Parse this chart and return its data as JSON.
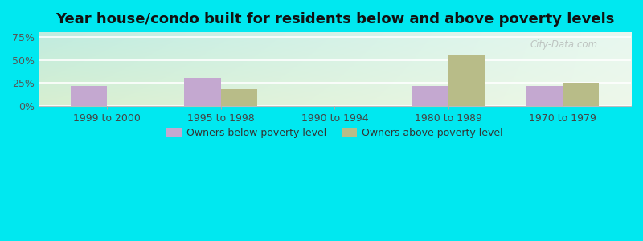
{
  "title": "Year house/condo built for residents below and above poverty levels",
  "categories": [
    "1999 to 2000",
    "1995 to 1998",
    "1990 to 1994",
    "1980 to 1989",
    "1970 to 1979"
  ],
  "below_poverty": [
    22,
    30,
    0,
    22,
    22
  ],
  "above_poverty": [
    0,
    18,
    0,
    55,
    25
  ],
  "below_color": "#c4a8d0",
  "above_color": "#b8bc88",
  "yticks": [
    0,
    25,
    50,
    75
  ],
  "ylabels": [
    "0%",
    "25%",
    "50%",
    "75%"
  ],
  "ylim": [
    0,
    80
  ],
  "bar_width": 0.32,
  "background_outer": "#00e8f0",
  "title_fontsize": 13,
  "tick_fontsize": 9,
  "legend_label_below": "Owners below poverty level",
  "legend_label_above": "Owners above poverty level",
  "watermark": "City-Data.com"
}
